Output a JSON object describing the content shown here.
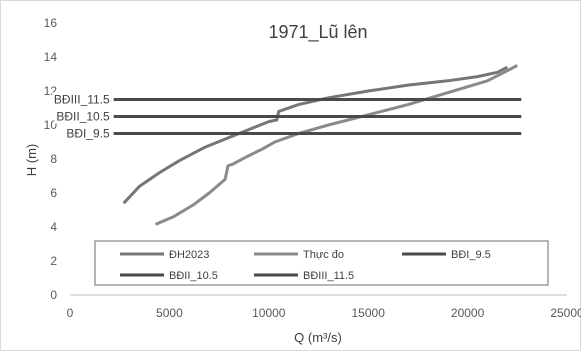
{
  "chart_data": {
    "type": "line",
    "title": "1971_Lũ lên",
    "xlabel": "Q (m³/s)",
    "ylabel": "H (m)",
    "xlim": [
      0,
      25000
    ],
    "ylim": [
      0,
      16
    ],
    "xticks": [
      0,
      5000,
      10000,
      15000,
      20000,
      25000
    ],
    "yticks": [
      0,
      2,
      4,
      6,
      8,
      10,
      12,
      14,
      16
    ],
    "grid": false,
    "legend_position": "bottom",
    "series": [
      {
        "name": "ĐH2023",
        "color": "#767676",
        "width": 3,
        "x": [
          2700,
          3500,
          4500,
          5500,
          6800,
          8500,
          10000,
          10400,
          10500,
          11500,
          13000,
          15000,
          17000,
          19000,
          20500,
          21500,
          22000
        ],
        "y": [
          5.4,
          6.4,
          7.2,
          7.9,
          8.7,
          9.5,
          10.2,
          10.3,
          10.8,
          11.2,
          11.6,
          12.0,
          12.35,
          12.6,
          12.85,
          13.1,
          13.4
        ]
      },
      {
        "name": "Thực đo",
        "color": "#8a8a8a",
        "width": 3,
        "x": [
          4300,
          5200,
          6200,
          7000,
          7800,
          7950,
          8200,
          9000,
          9700,
          10300,
          11500,
          13000,
          15000,
          17000,
          19000,
          21000,
          22500
        ],
        "y": [
          4.15,
          4.6,
          5.3,
          6.0,
          6.8,
          7.6,
          7.7,
          8.2,
          8.6,
          9.0,
          9.5,
          10.0,
          10.6,
          11.2,
          11.9,
          12.6,
          13.5
        ]
      },
      {
        "name": "BĐI_9.5",
        "color": "#4a4a4a",
        "width": 3,
        "x": [
          2200,
          22700
        ],
        "y": [
          9.5,
          9.5
        ],
        "label": "BĐI_9.5"
      },
      {
        "name": "BĐII_10.5",
        "color": "#4a4a4a",
        "width": 3,
        "x": [
          2200,
          22700
        ],
        "y": [
          10.5,
          10.5
        ],
        "label": "BĐII_10.5"
      },
      {
        "name": "BĐIII_11.5",
        "color": "#4a4a4a",
        "width": 3,
        "x": [
          2200,
          22700
        ],
        "y": [
          11.5,
          11.5
        ],
        "label": "BĐIII_11.5"
      }
    ]
  }
}
